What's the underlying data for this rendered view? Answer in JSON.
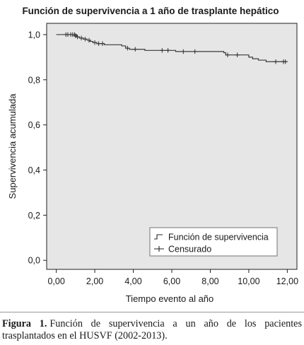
{
  "chart_data": {
    "type": "line",
    "title": "Función de supervivencia a 1 año de trasplante hepático",
    "xlabel": "Tiempo evento al año",
    "ylabel": "Supervivencia acumulada",
    "xlim": [
      -0.5,
      12.5
    ],
    "ylim": [
      -0.04,
      1.05
    ],
    "xticks": [
      0,
      2,
      4,
      6,
      8,
      10,
      12
    ],
    "xtick_labels": [
      "0,00",
      "2,00",
      "4,00",
      "6,00",
      "8,00",
      "10,00",
      "12,00"
    ],
    "yticks": [
      0,
      0.2,
      0.4,
      0.6,
      0.8,
      1.0
    ],
    "ytick_labels": [
      "0,0",
      "0,2",
      "0,4",
      "0,6",
      "0,8",
      "1,0"
    ],
    "grid": false,
    "background_color": "#e6e6e6",
    "line_color": "#3a3a3a",
    "legend_position": "bottom-right",
    "series": [
      {
        "name": "Función de supervivencia",
        "step": true,
        "points": [
          [
            0.0,
            1.0
          ],
          [
            0.9,
            1.0
          ],
          [
            1.05,
            0.99
          ],
          [
            1.2,
            0.985
          ],
          [
            1.4,
            0.98
          ],
          [
            1.6,
            0.975
          ],
          [
            1.75,
            0.97
          ],
          [
            1.9,
            0.965
          ],
          [
            2.1,
            0.96
          ],
          [
            2.5,
            0.955
          ],
          [
            3.4,
            0.95
          ],
          [
            3.6,
            0.94
          ],
          [
            3.8,
            0.935
          ],
          [
            4.6,
            0.93
          ],
          [
            6.2,
            0.925
          ],
          [
            8.7,
            0.92
          ],
          [
            8.8,
            0.91
          ],
          [
            10.0,
            0.9
          ],
          [
            10.2,
            0.893
          ],
          [
            10.5,
            0.887
          ],
          [
            10.9,
            0.88
          ],
          [
            12.0,
            0.88
          ]
        ]
      },
      {
        "name": "Censurado",
        "markers": [
          [
            0.5,
            1.0
          ],
          [
            0.6,
            1.0
          ],
          [
            0.75,
            1.0
          ],
          [
            0.85,
            1.0
          ],
          [
            0.95,
            1.0
          ],
          [
            1.0,
            0.995
          ],
          [
            1.1,
            0.99
          ],
          [
            1.3,
            0.985
          ],
          [
            1.5,
            0.98
          ],
          [
            1.7,
            0.975
          ],
          [
            2.0,
            0.965
          ],
          [
            2.2,
            0.96
          ],
          [
            2.4,
            0.96
          ],
          [
            3.7,
            0.94
          ],
          [
            4.1,
            0.935
          ],
          [
            5.5,
            0.93
          ],
          [
            5.8,
            0.93
          ],
          [
            6.6,
            0.925
          ],
          [
            7.2,
            0.925
          ],
          [
            8.9,
            0.91
          ],
          [
            9.4,
            0.91
          ],
          [
            11.4,
            0.88
          ],
          [
            11.8,
            0.88
          ],
          [
            11.9,
            0.88
          ]
        ]
      }
    ]
  },
  "caption": {
    "label": "Figura 1.",
    "text": "Función de supervivencia a un año de los pacientes trasplantados en el HUSVF (2002-2013)."
  }
}
